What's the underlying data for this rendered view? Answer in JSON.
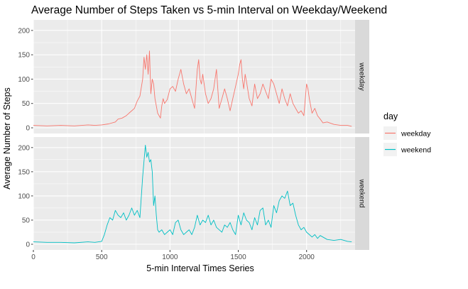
{
  "chart_data": {
    "type": "line",
    "title": "Average Number of Steps Taken vs 5-min Interval on Weekday/Weekend",
    "xlabel": "5-min Interval Times Series",
    "ylabel": "Average Number of Steps",
    "xlim": [
      0,
      2355
    ],
    "ylim": [
      0,
      210
    ],
    "x_ticks": [
      0,
      500,
      1000,
      1500,
      2000
    ],
    "y_ticks": [
      0,
      50,
      100,
      150,
      200
    ],
    "grid": true,
    "legend": {
      "title": "day",
      "placement": "right"
    },
    "facets": [
      "weekday",
      "weekend"
    ],
    "colors": {
      "weekday": "#F8766D",
      "weekend": "#00BFC4",
      "panel_bg": "#EBEBEB",
      "strip_bg": "#D9D9D9"
    },
    "series": [
      {
        "name": "weekday",
        "x": [
          0,
          100,
          200,
          300,
          400,
          450,
          500,
          550,
          600,
          620,
          650,
          680,
          700,
          720,
          740,
          760,
          780,
          800,
          810,
          820,
          830,
          840,
          850,
          860,
          870,
          880,
          890,
          900,
          910,
          920,
          930,
          940,
          950,
          960,
          980,
          1000,
          1020,
          1040,
          1060,
          1080,
          1100,
          1120,
          1140,
          1160,
          1180,
          1200,
          1210,
          1220,
          1230,
          1240,
          1260,
          1280,
          1300,
          1320,
          1340,
          1360,
          1380,
          1400,
          1420,
          1440,
          1460,
          1480,
          1500,
          1510,
          1520,
          1530,
          1540,
          1550,
          1560,
          1580,
          1600,
          1620,
          1640,
          1660,
          1680,
          1700,
          1720,
          1740,
          1760,
          1780,
          1800,
          1820,
          1840,
          1860,
          1880,
          1900,
          1920,
          1940,
          1960,
          1980,
          2000,
          2010,
          2020,
          2040,
          2060,
          2080,
          2100,
          2120,
          2150,
          2200,
          2250,
          2300,
          2330
        ],
        "values": [
          5,
          4,
          5,
          4,
          6,
          5,
          6,
          8,
          12,
          18,
          20,
          25,
          30,
          35,
          40,
          55,
          65,
          100,
          145,
          120,
          150,
          110,
          158,
          70,
          100,
          90,
          60,
          45,
          30,
          25,
          20,
          45,
          60,
          50,
          58,
          80,
          85,
          75,
          100,
          120,
          90,
          70,
          80,
          60,
          40,
          120,
          140,
          100,
          90,
          110,
          70,
          50,
          60,
          80,
          120,
          40,
          60,
          80,
          60,
          35,
          60,
          85,
          110,
          130,
          140,
          100,
          80,
          110,
          95,
          60,
          45,
          90,
          60,
          70,
          90,
          75,
          60,
          100,
          90,
          70,
          50,
          80,
          60,
          45,
          70,
          50,
          40,
          30,
          35,
          25,
          90,
          80,
          60,
          30,
          40,
          25,
          18,
          10,
          12,
          7,
          5,
          5,
          3
        ]
      },
      {
        "name": "weekend",
        "x": [
          0,
          100,
          200,
          300,
          400,
          450,
          500,
          520,
          540,
          560,
          580,
          600,
          620,
          640,
          660,
          680,
          700,
          720,
          740,
          760,
          780,
          800,
          820,
          830,
          840,
          850,
          860,
          870,
          880,
          890,
          900,
          910,
          920,
          940,
          960,
          980,
          1000,
          1020,
          1040,
          1060,
          1080,
          1100,
          1120,
          1140,
          1160,
          1180,
          1200,
          1220,
          1240,
          1260,
          1280,
          1300,
          1320,
          1340,
          1360,
          1380,
          1400,
          1420,
          1440,
          1460,
          1480,
          1500,
          1520,
          1540,
          1560,
          1580,
          1600,
          1620,
          1640,
          1660,
          1680,
          1700,
          1720,
          1740,
          1760,
          1780,
          1800,
          1820,
          1840,
          1860,
          1880,
          1900,
          1920,
          1940,
          1960,
          1980,
          2000,
          2020,
          2040,
          2060,
          2080,
          2100,
          2150,
          2200,
          2250,
          2300,
          2330
        ],
        "values": [
          5,
          4,
          4,
          3,
          5,
          4,
          6,
          20,
          40,
          55,
          50,
          70,
          60,
          55,
          65,
          50,
          60,
          75,
          60,
          70,
          55,
          140,
          205,
          180,
          190,
          170,
          175,
          150,
          80,
          100,
          60,
          30,
          25,
          30,
          20,
          25,
          30,
          20,
          45,
          50,
          30,
          20,
          25,
          30,
          20,
          35,
          60,
          40,
          50,
          45,
          60,
          40,
          50,
          35,
          30,
          25,
          40,
          35,
          45,
          30,
          20,
          60,
          40,
          65,
          50,
          45,
          30,
          55,
          40,
          70,
          75,
          40,
          50,
          35,
          80,
          65,
          90,
          100,
          95,
          110,
          80,
          85,
          60,
          40,
          30,
          35,
          25,
          20,
          15,
          20,
          12,
          18,
          10,
          8,
          10,
          6,
          5
        ]
      }
    ]
  }
}
